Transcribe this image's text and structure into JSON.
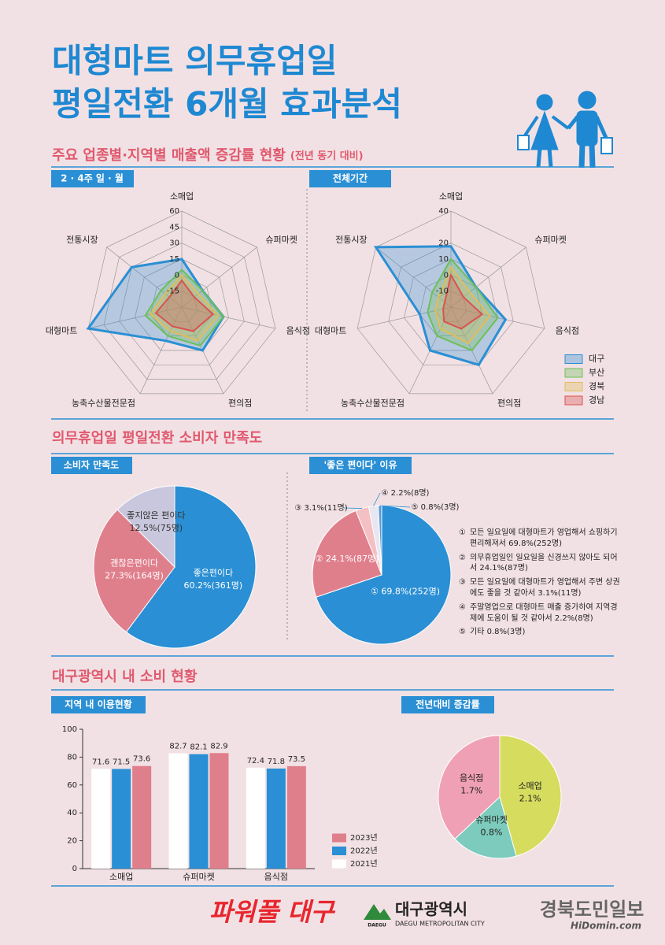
{
  "header": {
    "title_line1": "대형마트 의무휴업일",
    "title_line2": "평일전환 6개월 효과분석"
  },
  "sections": [
    {
      "title": "주요 업종별·지역별 매출액 증감률 현황",
      "note": "(전년 동기 대비)"
    },
    {
      "title": "의무휴업일 평일전환 소비자 만족도"
    },
    {
      "title": "대구광역시 내 소비 현황"
    }
  ],
  "chart_data": [
    {
      "type": "radar",
      "title": "2 · 4주 일 · 월",
      "categories": [
        "소매업",
        "슈퍼마켓",
        "음식점",
        "편의점",
        "농축수산물전문점",
        "대형마트",
        "전통시장"
      ],
      "rlim": [
        -30,
        60
      ],
      "rticks": [
        -15,
        0,
        15,
        30,
        45,
        60
      ],
      "series": [
        {
          "color": "#2a8fd4",
          "values": [
            15,
            -5,
            10,
            15,
            5,
            60,
            30
          ]
        },
        {
          "color": "#6cbf5a",
          "values": [
            5,
            -5,
            10,
            10,
            0,
            5,
            -5
          ]
        },
        {
          "color": "#e0bd5c",
          "values": [
            0,
            -10,
            5,
            5,
            -5,
            0,
            -10
          ]
        },
        {
          "color": "#d9534f",
          "values": [
            -5,
            -15,
            0,
            -5,
            -10,
            -5,
            -15
          ]
        }
      ]
    },
    {
      "type": "radar",
      "title": "전체기간",
      "categories": [
        "소매업",
        "슈퍼마켓",
        "음식점",
        "편의점",
        "농축수산물전문점",
        "대형마트",
        "전통시장"
      ],
      "rlim": [
        -20,
        40
      ],
      "rticks": [
        -10,
        0,
        10,
        20,
        40
      ],
      "series": [
        {
          "name": "대구",
          "color": "#2a8fd4",
          "values": [
            18,
            0,
            15,
            20,
            10,
            0,
            40
          ]
        },
        {
          "name": "부산",
          "color": "#6cbf5a",
          "values": [
            10,
            0,
            10,
            10,
            0,
            -5,
            -5
          ]
        },
        {
          "name": "경북",
          "color": "#e0bd5c",
          "values": [
            5,
            -5,
            5,
            5,
            -5,
            -10,
            -10
          ]
        },
        {
          "name": "경남",
          "color": "#d9534f",
          "values": [
            0,
            -10,
            0,
            -5,
            -10,
            -15,
            -15
          ]
        }
      ]
    },
    {
      "type": "pie",
      "title": "소비자 만족도",
      "categories": [
        "좋은편이다",
        "괜찮은편이다",
        "좋지않은 편이다"
      ],
      "values": [
        60.2,
        27.3,
        12.5
      ],
      "value_labels": [
        "60.2%(361명)",
        "27.3%(164명)",
        "12.5%(75명)"
      ],
      "colors": [
        "#2a8fd4",
        "#e07f8c",
        "#c9c7dd"
      ]
    },
    {
      "type": "pie",
      "title": "'좋은 편이다' 이유",
      "markers": [
        "①",
        "②",
        "③",
        "④",
        "⑤"
      ],
      "categories": [
        "모든 일요일에 대형마트가 영업해서 쇼핑하기 편리해져서 69.8%(252명)",
        "의무휴업일인 일요일을 신경쓰지 않아도 되어서 24.1%(87명)",
        "모든 일요일에 대형마트가 영업해서 주변 상권에도 좋을 것 같아서 3.1%(11명)",
        "주말영업으로 대형마트 매출 증가하여 지역경제에 도움이 될 것 같아서 2.2%(8명)",
        "기타 0.8%(3명)"
      ],
      "values": [
        69.8,
        24.1,
        3.1,
        2.2,
        0.8
      ],
      "value_labels": [
        "① 69.8%(252명)",
        "② 24.1%(87명)",
        "③ 3.1%(11명)",
        "④ 2.2%(8명)",
        "⑤ 0.8%(3명)"
      ],
      "colors": [
        "#2a8fd4",
        "#e07f8c",
        "#f4c0c3",
        "#e8e6f0",
        "#5a9ad8"
      ]
    },
    {
      "type": "bar",
      "title": "지역 내 이용현황",
      "categories": [
        "소매업",
        "슈퍼마켓",
        "음식점"
      ],
      "ylim": [
        0,
        100
      ],
      "yticks": [
        0,
        20,
        40,
        60,
        80,
        100
      ],
      "series": [
        {
          "name": "2021년",
          "color": "#ffffff",
          "values": [
            71.6,
            82.7,
            72.4
          ]
        },
        {
          "name": "2022년",
          "color": "#2a8fd4",
          "values": [
            71.5,
            82.1,
            71.8
          ]
        },
        {
          "name": "2023년",
          "color": "#e07f8c",
          "values": [
            73.6,
            82.9,
            73.5
          ]
        }
      ]
    },
    {
      "type": "pie",
      "title": "전년대비 증감률",
      "categories": [
        "소매업",
        "슈퍼마켓",
        "음식점"
      ],
      "values": [
        2.1,
        0.8,
        1.7
      ],
      "value_labels": [
        "2.1%",
        "0.8%",
        "1.7%"
      ],
      "colors": [
        "#d6dc5e",
        "#7ccbbd",
        "#f0a0b4"
      ]
    }
  ],
  "footer": {
    "slogan": "파워풀 대구",
    "logo_mark": "DAEGU",
    "org_name": "대구광역시",
    "org_name_en": "DAEGU METROPOLITAN CITY"
  },
  "watermark": {
    "name": "경북도민일보",
    "site": "HiDomin.com"
  }
}
